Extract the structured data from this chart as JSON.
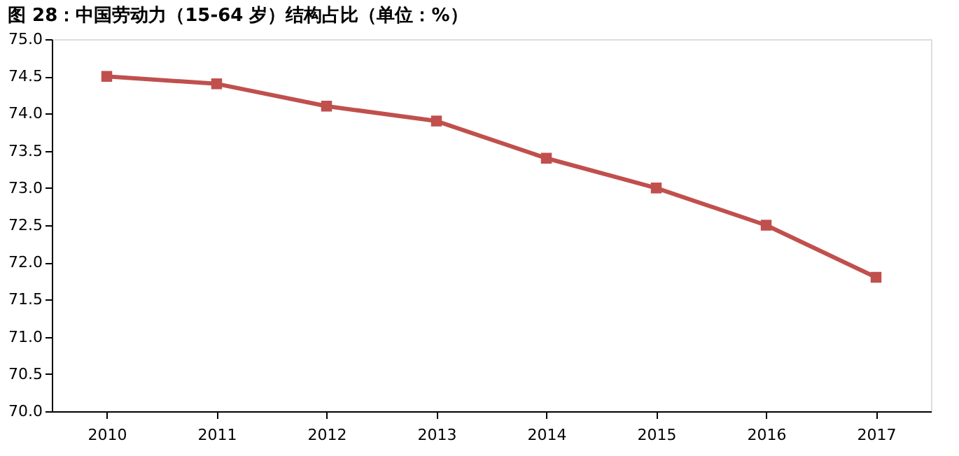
{
  "chart_data": {
    "type": "line",
    "title": "图 28：中国劳动力（15-64 岁）结构占比（单位：%）",
    "categories": [
      "2010",
      "2011",
      "2012",
      "2013",
      "2014",
      "2015",
      "2016",
      "2017"
    ],
    "series": [
      {
        "color": "#c0504d",
        "values": [
          74.5,
          74.4,
          74.1,
          73.9,
          73.4,
          73.0,
          72.5,
          71.8
        ]
      }
    ],
    "ylim": [
      70,
      75
    ],
    "yticks": [
      {
        "value": 70,
        "label": "70.0"
      },
      {
        "value": 70.5,
        "label": "70.5"
      },
      {
        "value": 71,
        "label": "71.0"
      },
      {
        "value": 71.5,
        "label": "71.5"
      },
      {
        "value": 72,
        "label": "72.0"
      },
      {
        "value": 72.5,
        "label": "72.5"
      },
      {
        "value": 73,
        "label": "73.0"
      },
      {
        "value": 73.5,
        "label": "73.5"
      },
      {
        "value": 74,
        "label": "74.0"
      },
      {
        "value": 74.5,
        "label": "74.5"
      },
      {
        "value": 75,
        "label": "75.0"
      }
    ],
    "marker": "square",
    "line_style": "solid",
    "grid": false,
    "legend": false
  }
}
